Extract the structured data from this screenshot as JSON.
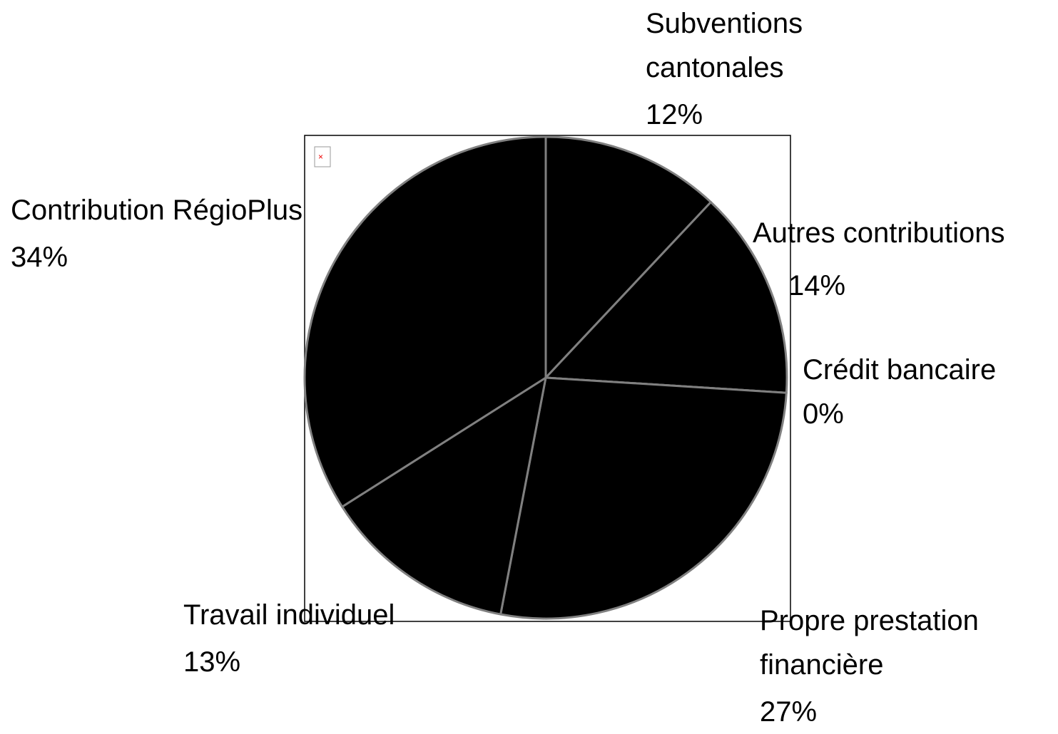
{
  "chart_data": {
    "type": "pie",
    "categories": [
      "Subventions cantonales",
      "Autres contributions",
      "Crédit bancaire",
      "Propre prestation financière",
      "Travail individuel",
      "Contribution RégioPlus"
    ],
    "values": [
      12,
      14,
      0,
      27,
      13,
      34
    ],
    "value_labels": [
      "12%",
      "14%",
      "0%",
      "27%",
      "13%",
      "34%"
    ],
    "color": "#000000"
  }
}
